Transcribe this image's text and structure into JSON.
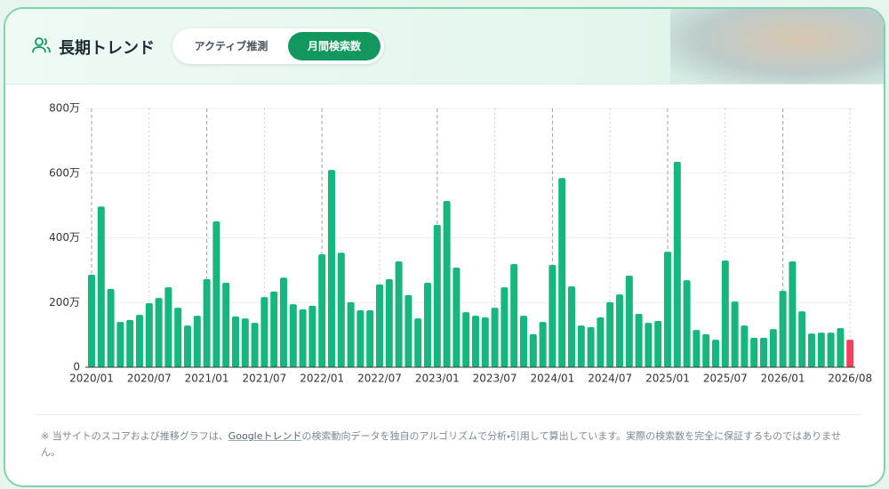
{
  "header": {
    "title": "長期トレンド",
    "tabs": [
      {
        "label": "アクティブ推測",
        "active": false
      },
      {
        "label": "月間検索数",
        "active": true
      }
    ]
  },
  "chart_data": {
    "type": "bar",
    "categories": [
      "2020/01",
      null,
      null,
      null,
      null,
      null,
      "2020/07",
      null,
      null,
      null,
      null,
      null,
      "2021/01",
      null,
      null,
      null,
      null,
      null,
      "2021/07",
      null,
      null,
      null,
      null,
      null,
      "2022/01",
      null,
      null,
      null,
      null,
      null,
      "2022/07",
      null,
      null,
      null,
      null,
      null,
      "2023/01",
      null,
      null,
      null,
      null,
      null,
      "2023/07",
      null,
      null,
      null,
      null,
      null,
      "2024/01",
      null,
      null,
      null,
      null,
      null,
      "2024/07",
      null,
      null,
      null,
      null,
      null,
      "2025/01",
      null,
      null,
      null,
      null,
      null,
      "2025/07",
      null,
      null,
      null,
      null,
      null,
      "2026/01",
      null,
      null,
      null,
      null,
      null,
      null,
      "2026/08"
    ],
    "values": [
      286,
      497,
      242,
      140,
      146,
      162,
      198,
      214,
      247,
      184,
      129,
      159,
      272,
      451,
      261,
      157,
      151,
      137,
      217,
      234,
      277,
      195,
      179,
      190,
      349,
      610,
      354,
      201,
      176,
      176,
      256,
      272,
      327,
      223,
      151,
      261,
      440,
      514,
      308,
      170,
      159,
      154,
      184,
      247,
      319,
      159,
      102,
      140,
      316,
      585,
      250,
      129,
      124,
      154,
      201,
      225,
      283,
      165,
      137,
      143,
      357,
      635,
      269,
      115,
      102,
      85,
      330,
      203,
      129,
      91,
      91,
      118,
      236,
      327,
      173,
      104,
      107,
      107,
      121,
      85
    ],
    "colors": [
      "#16b67f",
      "#16b67f",
      "#16b67f",
      "#16b67f",
      "#16b67f",
      "#16b67f",
      "#16b67f",
      "#16b67f",
      "#16b67f",
      "#16b67f",
      "#16b67f",
      "#16b67f",
      "#16b67f",
      "#16b67f",
      "#16b67f",
      "#16b67f",
      "#16b67f",
      "#16b67f",
      "#16b67f",
      "#16b67f",
      "#16b67f",
      "#16b67f",
      "#16b67f",
      "#16b67f",
      "#16b67f",
      "#16b67f",
      "#16b67f",
      "#16b67f",
      "#16b67f",
      "#16b67f",
      "#16b67f",
      "#16b67f",
      "#16b67f",
      "#16b67f",
      "#16b67f",
      "#16b67f",
      "#16b67f",
      "#16b67f",
      "#16b67f",
      "#16b67f",
      "#16b67f",
      "#16b67f",
      "#16b67f",
      "#16b67f",
      "#16b67f",
      "#16b67f",
      "#16b67f",
      "#16b67f",
      "#16b67f",
      "#16b67f",
      "#16b67f",
      "#16b67f",
      "#16b67f",
      "#16b67f",
      "#16b67f",
      "#16b67f",
      "#16b67f",
      "#16b67f",
      "#16b67f",
      "#16b67f",
      "#16b67f",
      "#16b67f",
      "#16b67f",
      "#16b67f",
      "#16b67f",
      "#16b67f",
      "#16b67f",
      "#16b67f",
      "#16b67f",
      "#16b67f",
      "#16b67f",
      "#16b67f",
      "#16b67f",
      "#16b67f",
      "#16b67f",
      "#16b67f",
      "#16b67f",
      "#16b67f",
      "#16b67f",
      "#f2405c"
    ],
    "ylim": [
      0,
      800
    ],
    "yticks": [
      0,
      {
        "value": 200,
        "label": "200万"
      },
      {
        "value": 400,
        "label": "400万"
      },
      {
        "value": 600,
        "label": "600万"
      },
      {
        "value": 800,
        "label": "800万"
      }
    ],
    "grid": true
  },
  "note": {
    "before": "※ 当サイトのスコアおよび推移グラフは、",
    "link": "Googleトレンド",
    "after": "の検索動向データを独自のアルゴリズムで分析・引用して算出しています。実際の検索数を完全に保証するものではありません。"
  }
}
